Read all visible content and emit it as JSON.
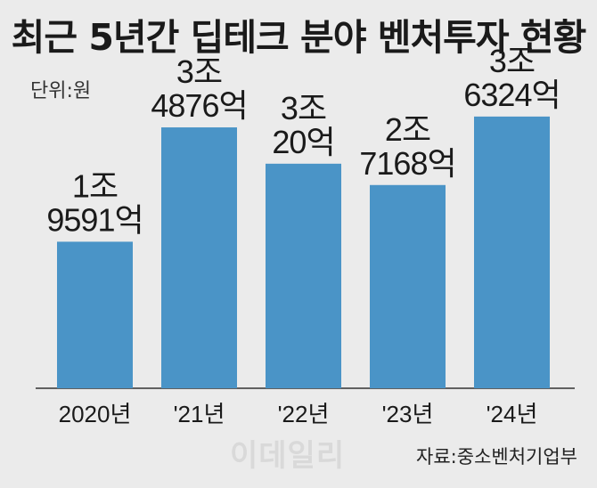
{
  "title": "최근 5년간 딥테크 분야 벤처투자 현황",
  "unit_label": "단위:원",
  "source": "자료:중소벤처기업부",
  "watermark": "이데일리",
  "colors": {
    "bar": "#4a94c7",
    "background": "#ebebeb",
    "axis": "#333333"
  },
  "chart_data": {
    "type": "bar",
    "categories": [
      "2020년",
      "'21년",
      "'22년",
      "'23년",
      "'24년"
    ],
    "values": [
      19591,
      34876,
      30020,
      27168,
      36324
    ],
    "value_unit": "억원",
    "data_labels": [
      [
        "1조",
        "9591억"
      ],
      [
        "3조",
        "4876억"
      ],
      [
        "3조",
        "20억"
      ],
      [
        "2조",
        "7168억"
      ],
      [
        "3조",
        "6324억"
      ]
    ],
    "title": "최근 5년간 딥테크 분야 벤처투자 현황",
    "xlabel": "",
    "ylabel": "",
    "ylim": [
      0,
      40000
    ],
    "grid": false,
    "legend": "none"
  }
}
